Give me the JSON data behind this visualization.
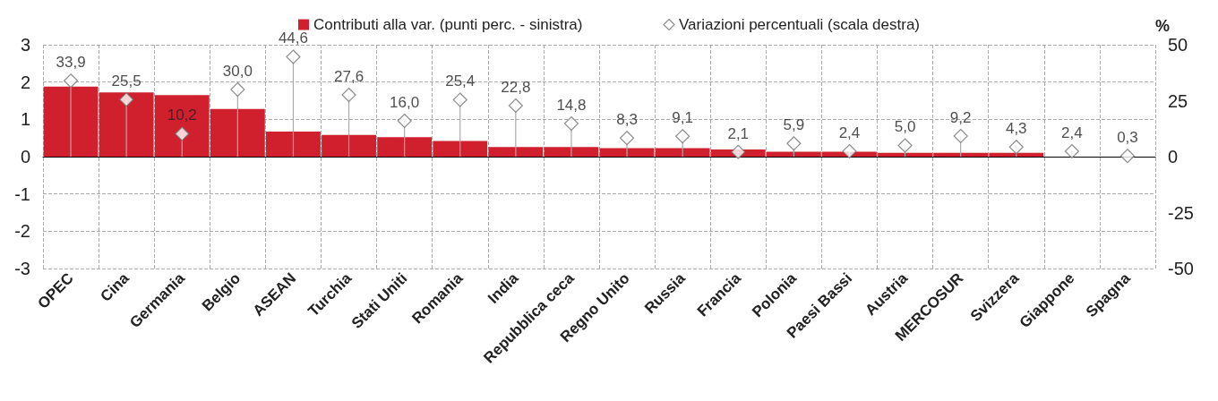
{
  "chart_data": {
    "type": "bar",
    "categories": [
      "OPEC",
      "Cina",
      "Germania",
      "Belgio",
      "ASEAN",
      "Turchia",
      "Stati Uniti",
      "Romania",
      "India",
      "Repubblica ceca",
      "Regno Unito",
      "Russia",
      "Francia",
      "Polonia",
      "Paesi Bassi",
      "Austria",
      "MERCOSUR",
      "Svizzera",
      "Giappone",
      "Spagna"
    ],
    "series": [
      {
        "name": "Contributi alla var. (punti perc. - sinistra)",
        "color": "#d0202e",
        "values": [
          1.88,
          1.72,
          1.65,
          1.28,
          0.67,
          0.58,
          0.52,
          0.42,
          0.26,
          0.26,
          0.23,
          0.23,
          0.19,
          0.13,
          0.13,
          0.1,
          0.1,
          0.1,
          0,
          0
        ]
      },
      {
        "name": "Variazioni percentuali (scala destra)",
        "type": "lollipop",
        "axis": "y2",
        "color": "#707070",
        "marker": "diamond",
        "values": [
          33.9,
          25.5,
          10.2,
          30.0,
          44.6,
          27.6,
          16.0,
          25.4,
          22.8,
          14.8,
          8.3,
          9.1,
          2.1,
          5.9,
          2.4,
          5.0,
          9.2,
          4.3,
          2.4,
          0.3
        ],
        "value_labels": [
          "33,9",
          "25,5",
          "10,2",
          "30,0",
          "44,6",
          "27,6",
          "16,0",
          "25,4",
          "22,8",
          "14,8",
          "8,3",
          "9,1",
          "2,1",
          "5,9",
          "2,4",
          "5,0",
          "9,2",
          "4,3",
          "2,4",
          "0,3"
        ]
      }
    ],
    "y2label": "%",
    "ylim": [
      -3,
      3
    ],
    "yticks": [
      -3,
      -2,
      -1,
      0,
      1,
      2,
      3
    ],
    "y2lim": [
      -50,
      50
    ],
    "y2ticks": [
      -50,
      -25,
      0,
      25,
      50
    ],
    "grid": true,
    "legend": "top"
  }
}
